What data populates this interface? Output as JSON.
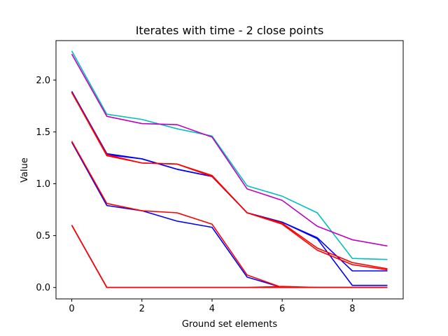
{
  "chart_data": {
    "type": "line",
    "title": "Iterates with time - 2 close points",
    "xlabel": "Ground set elements",
    "ylabel": "Value",
    "xlim": [
      -0.45,
      9.45
    ],
    "ylim": [
      -0.11,
      2.38
    ],
    "xticks": [
      0,
      2,
      4,
      6,
      8
    ],
    "yticks": [
      0.0,
      0.5,
      1.0,
      1.5,
      2.0
    ],
    "xtick_labels": [
      "0",
      "2",
      "4",
      "6",
      "8"
    ],
    "ytick_labels": [
      "0.0",
      "0.5",
      "1.0",
      "1.5",
      "2.0"
    ],
    "grid": false,
    "x": [
      0,
      1,
      2,
      3,
      4,
      5,
      6,
      7,
      8,
      9
    ],
    "series": [
      {
        "color": "#00bfbf",
        "values": [
          2.28,
          1.67,
          1.62,
          1.53,
          1.46,
          0.98,
          0.88,
          0.72,
          0.28,
          0.27
        ]
      },
      {
        "color": "#bf00bf",
        "values": [
          2.25,
          1.65,
          1.58,
          1.57,
          1.45,
          0.95,
          0.84,
          0.59,
          0.46,
          0.4
        ]
      },
      {
        "color": "#0000ff",
        "values": [
          1.89,
          1.29,
          1.24,
          1.14,
          1.07,
          0.72,
          0.63,
          0.48,
          0.16,
          0.16
        ]
      },
      {
        "color": "#0000ff",
        "values": [
          1.89,
          1.28,
          1.24,
          1.14,
          1.07,
          0.72,
          0.63,
          0.47,
          0.02,
          0.02
        ]
      },
      {
        "color": "#0000ff",
        "values": [
          1.4,
          0.79,
          0.74,
          0.64,
          0.58,
          0.1,
          0.0,
          0.0,
          0.0,
          0.0
        ]
      },
      {
        "color": "#0000ff",
        "values": [
          0.6,
          0.0,
          0.0,
          0.0,
          0.0,
          0.0,
          0.0,
          0.0,
          0.0,
          0.0
        ]
      },
      {
        "color": "#ff0000",
        "values": [
          1.88,
          1.27,
          1.2,
          1.19,
          1.08,
          0.72,
          0.62,
          0.38,
          0.24,
          0.18
        ]
      },
      {
        "color": "#ff0000",
        "values": [
          1.88,
          1.28,
          1.2,
          1.19,
          1.07,
          0.72,
          0.61,
          0.36,
          0.22,
          0.17
        ]
      },
      {
        "color": "#ff0000",
        "values": [
          1.41,
          0.81,
          0.74,
          0.72,
          0.61,
          0.12,
          0.0,
          0.0,
          0.0,
          0.0
        ]
      },
      {
        "color": "#ff0000",
        "values": [
          0.6,
          0.0,
          0.0,
          0.0,
          0.0,
          0.0,
          0.0,
          0.0,
          0.0,
          0.0
        ]
      },
      {
        "color": "#ff0000",
        "values": [
          0.6,
          0.0,
          0.0,
          0.0,
          0.0,
          0.0,
          0.01,
          0.0,
          0.0,
          0.0
        ]
      }
    ]
  }
}
